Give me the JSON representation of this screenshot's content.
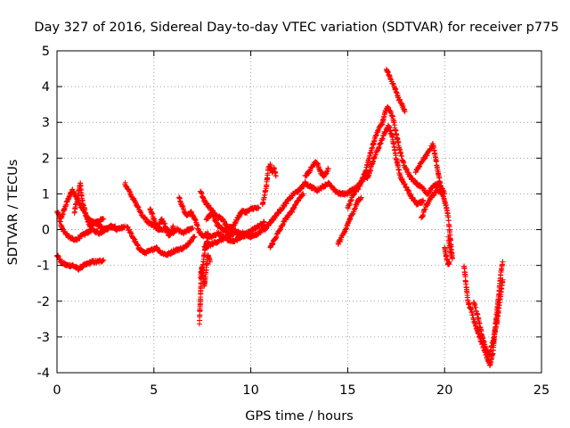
{
  "chart_data": {
    "type": "scatter",
    "title": "Day 327 of 2016, Sidereal Day-to-day VTEC variation (SDTVAR) for receiver p775",
    "xlabel": "GPS time / hours",
    "ylabel": "SDTVAR / TECUs",
    "xlim": [
      0,
      25
    ],
    "ylim": [
      -4,
      5
    ],
    "x_ticks": [
      "0",
      "5",
      "10",
      "15",
      "20",
      "25"
    ],
    "y_ticks": [
      "-4",
      "-3",
      "-2",
      "-1",
      "0",
      "1",
      "2",
      "3",
      "4",
      "5"
    ],
    "grid": true,
    "marker": "plus",
    "series": [
      {
        "name": "SDTVAR",
        "color": "#ff0000",
        "segments": [
          [
            [
              0.0,
              0.5
            ],
            [
              0.2,
              0.3
            ],
            [
              0.4,
              0.6
            ],
            [
              0.6,
              0.9
            ],
            [
              0.8,
              1.1
            ],
            [
              1.0,
              0.9
            ],
            [
              1.3,
              0.6
            ],
            [
              1.6,
              0.3
            ],
            [
              1.9,
              0.2
            ],
            [
              2.2,
              0.1
            ],
            [
              2.5,
              0.0
            ],
            [
              2.8,
              0.1
            ],
            [
              3.1,
              0.0
            ],
            [
              3.5,
              0.1
            ]
          ],
          [
            [
              0.0,
              -0.7
            ],
            [
              0.2,
              -0.9
            ],
            [
              0.5,
              -1.0
            ],
            [
              0.8,
              -1.0
            ],
            [
              1.1,
              -1.1
            ],
            [
              1.4,
              -1.0
            ],
            [
              1.8,
              -0.9
            ],
            [
              2.1,
              -0.9
            ],
            [
              2.4,
              -0.85
            ]
          ],
          [
            [
              0.1,
              0.3
            ],
            [
              0.3,
              0.0
            ],
            [
              0.6,
              -0.2
            ],
            [
              0.9,
              -0.3
            ],
            [
              1.2,
              -0.2
            ],
            [
              1.5,
              -0.1
            ],
            [
              1.8,
              0.0
            ],
            [
              2.2,
              -0.1
            ],
            [
              2.6,
              0.05
            ],
            [
              3.0,
              0.1
            ]
          ],
          [
            [
              0.9,
              0.5
            ],
            [
              1.1,
              1.0
            ],
            [
              1.2,
              1.3
            ],
            [
              1.3,
              0.8
            ],
            [
              1.5,
              0.4
            ],
            [
              1.7,
              0.1
            ],
            [
              2.0,
              0.2
            ],
            [
              2.4,
              0.3
            ]
          ],
          [
            [
              3.5,
              1.3
            ],
            [
              3.8,
              1.0
            ],
            [
              4.1,
              0.7
            ],
            [
              4.4,
              0.4
            ],
            [
              4.7,
              0.2
            ],
            [
              5.0,
              0.1
            ],
            [
              5.3,
              0.0
            ],
            [
              5.6,
              0.0
            ],
            [
              5.9,
              -0.1
            ],
            [
              6.2,
              0.0
            ],
            [
              6.5,
              -0.1
            ],
            [
              6.8,
              0.0
            ],
            [
              7.0,
              0.05
            ]
          ],
          [
            [
              3.6,
              0.1
            ],
            [
              3.9,
              -0.2
            ],
            [
              4.2,
              -0.5
            ],
            [
              4.5,
              -0.65
            ],
            [
              4.8,
              -0.6
            ],
            [
              5.1,
              -0.5
            ],
            [
              5.4,
              -0.65
            ],
            [
              5.7,
              -0.7
            ],
            [
              6.0,
              -0.6
            ],
            [
              6.3,
              -0.55
            ],
            [
              6.6,
              -0.5
            ],
            [
              6.9,
              -0.3
            ],
            [
              7.1,
              -0.2
            ]
          ],
          [
            [
              4.8,
              0.6
            ],
            [
              5.0,
              0.3
            ],
            [
              5.2,
              0.0
            ],
            [
              5.4,
              0.3
            ],
            [
              5.6,
              0.1
            ],
            [
              5.8,
              -0.2
            ],
            [
              6.0,
              0.1
            ]
          ],
          [
            [
              6.3,
              0.9
            ],
            [
              6.5,
              0.6
            ],
            [
              6.7,
              0.4
            ],
            [
              6.9,
              0.5
            ],
            [
              7.1,
              0.3
            ],
            [
              7.3,
              0.0
            ],
            [
              7.5,
              -0.2
            ],
            [
              7.8,
              -0.1
            ]
          ],
          [
            [
              7.35,
              -2.6
            ],
            [
              7.4,
              -1.9
            ],
            [
              7.45,
              -1.3
            ],
            [
              7.55,
              -0.9
            ],
            [
              7.65,
              -0.5
            ],
            [
              7.8,
              -0.2
            ],
            [
              8.0,
              -0.2
            ],
            [
              8.3,
              -0.1
            ],
            [
              8.6,
              -0.2
            ],
            [
              8.9,
              -0.3
            ],
            [
              9.2,
              -0.3
            ],
            [
              9.5,
              -0.2
            ],
            [
              9.8,
              -0.1
            ],
            [
              10.1,
              0.0
            ],
            [
              10.4,
              0.1
            ],
            [
              10.7,
              0.2
            ]
          ],
          [
            [
              7.4,
              -1.3
            ],
            [
              7.5,
              -1.0
            ],
            [
              7.6,
              -1.6
            ],
            [
              7.7,
              -1.1
            ],
            [
              7.8,
              -0.7
            ],
            [
              7.9,
              -0.9
            ]
          ],
          [
            [
              7.4,
              1.1
            ],
            [
              7.6,
              0.8
            ],
            [
              7.9,
              0.6
            ],
            [
              8.2,
              0.4
            ],
            [
              8.5,
              0.3
            ],
            [
              8.8,
              0.1
            ],
            [
              9.1,
              0.0
            ],
            [
              9.4,
              -0.1
            ],
            [
              9.7,
              -0.2
            ]
          ],
          [
            [
              7.7,
              0.3
            ],
            [
              8.0,
              0.45
            ],
            [
              8.3,
              0.1
            ],
            [
              8.6,
              0.0
            ],
            [
              8.9,
              -0.1
            ],
            [
              9.2,
              0.2
            ],
            [
              9.5,
              0.5
            ],
            [
              9.8,
              0.5
            ],
            [
              10.1,
              0.6
            ],
            [
              10.4,
              0.6
            ]
          ],
          [
            [
              7.6,
              -0.5
            ],
            [
              8.0,
              -0.4
            ],
            [
              8.4,
              -0.3
            ],
            [
              8.8,
              -0.2
            ],
            [
              9.2,
              -0.1
            ],
            [
              9.6,
              -0.1
            ],
            [
              10.0,
              -0.2
            ],
            [
              10.4,
              -0.1
            ],
            [
              10.8,
              0.1
            ]
          ],
          [
            [
              10.7,
              0.0
            ],
            [
              11.0,
              0.2
            ],
            [
              11.3,
              0.4
            ],
            [
              11.6,
              0.6
            ],
            [
              11.9,
              0.8
            ],
            [
              12.2,
              1.0
            ],
            [
              12.5,
              1.1
            ],
            [
              12.8,
              1.3
            ],
            [
              13.1,
              1.2
            ],
            [
              13.4,
              1.1
            ],
            [
              13.7,
              1.2
            ],
            [
              14.0,
              1.3
            ],
            [
              14.3,
              1.1
            ],
            [
              14.6,
              1.0
            ],
            [
              14.9,
              1.0
            ],
            [
              15.2,
              1.1
            ],
            [
              15.5,
              1.2
            ],
            [
              15.8,
              1.4
            ],
            [
              16.1,
              1.6
            ]
          ],
          [
            [
              10.6,
              0.7
            ],
            [
              10.8,
              1.2
            ],
            [
              10.9,
              1.7
            ],
            [
              11.0,
              1.8
            ],
            [
              11.1,
              1.6
            ],
            [
              11.2,
              1.7
            ],
            [
              11.3,
              1.5
            ]
          ],
          [
            [
              11.0,
              -0.5
            ],
            [
              11.2,
              -0.3
            ],
            [
              11.5,
              0.0
            ],
            [
              11.8,
              0.3
            ],
            [
              12.1,
              0.5
            ],
            [
              12.4,
              0.8
            ],
            [
              12.7,
              1.0
            ]
          ],
          [
            [
              12.8,
              1.5
            ],
            [
              13.0,
              1.6
            ],
            [
              13.2,
              1.8
            ],
            [
              13.4,
              1.9
            ],
            [
              13.6,
              1.6
            ],
            [
              13.8,
              1.5
            ],
            [
              14.0,
              1.7
            ]
          ],
          [
            [
              14.5,
              -0.4
            ],
            [
              14.7,
              -0.2
            ],
            [
              14.9,
              0.0
            ],
            [
              15.1,
              0.3
            ],
            [
              15.3,
              0.5
            ],
            [
              15.5,
              0.8
            ],
            [
              15.7,
              0.9
            ]
          ],
          [
            [
              15.0,
              0.6
            ],
            [
              15.3,
              1.0
            ],
            [
              15.6,
              1.2
            ],
            [
              15.9,
              1.6
            ],
            [
              16.2,
              2.2
            ],
            [
              16.5,
              2.7
            ],
            [
              16.8,
              3.0
            ],
            [
              17.0,
              3.4
            ],
            [
              17.1,
              3.4
            ],
            [
              17.3,
              3.2
            ],
            [
              17.5,
              2.7
            ],
            [
              17.7,
              2.2
            ],
            [
              17.9,
              1.8
            ],
            [
              18.2,
              1.5
            ],
            [
              18.5,
              1.3
            ],
            [
              18.8,
              1.2
            ],
            [
              19.1,
              1.0
            ],
            [
              19.4,
              1.2
            ],
            [
              19.7,
              1.3
            ],
            [
              20.0,
              1.0
            ]
          ],
          [
            [
              16.0,
              1.4
            ],
            [
              16.3,
              1.9
            ],
            [
              16.6,
              2.3
            ],
            [
              16.9,
              2.7
            ],
            [
              17.1,
              2.9
            ],
            [
              17.3,
              2.6
            ],
            [
              17.5,
              2.0
            ],
            [
              17.7,
              1.5
            ],
            [
              18.0,
              1.2
            ],
            [
              18.3,
              0.9
            ],
            [
              18.6,
              0.7
            ],
            [
              18.9,
              0.8
            ]
          ],
          [
            [
              17.0,
              4.5
            ],
            [
              17.2,
              4.2
            ],
            [
              17.4,
              4.0
            ],
            [
              17.6,
              3.7
            ],
            [
              17.8,
              3.5
            ],
            [
              17.95,
              3.3
            ]
          ],
          [
            [
              18.5,
              1.6
            ],
            [
              18.8,
              1.9
            ],
            [
              19.1,
              2.1
            ],
            [
              19.4,
              2.4
            ],
            [
              19.6,
              1.8
            ],
            [
              19.8,
              1.2
            ],
            [
              19.9,
              1.0
            ]
          ],
          [
            [
              18.8,
              0.3
            ],
            [
              19.0,
              0.6
            ],
            [
              19.3,
              0.9
            ],
            [
              19.6,
              1.1
            ],
            [
              19.9,
              1.0
            ],
            [
              20.1,
              0.6
            ],
            [
              20.2,
              0.3
            ],
            [
              20.3,
              -0.3
            ],
            [
              20.4,
              -0.8
            ],
            [
              20.3,
              -0.6
            ],
            [
              20.2,
              -0.2
            ]
          ],
          [
            [
              20.0,
              -0.5
            ],
            [
              20.1,
              -0.8
            ],
            [
              20.2,
              -1.0
            ],
            [
              20.25,
              -0.9
            ]
          ],
          [
            [
              21.0,
              -1.0
            ],
            [
              21.1,
              -1.5
            ],
            [
              21.2,
              -2.0
            ],
            [
              21.4,
              -2.3
            ],
            [
              21.6,
              -2.7
            ],
            [
              21.8,
              -3.0
            ],
            [
              22.0,
              -3.3
            ],
            [
              22.2,
              -3.6
            ],
            [
              22.35,
              -3.8
            ],
            [
              22.5,
              -3.4
            ],
            [
              22.6,
              -2.8
            ],
            [
              22.7,
              -2.3
            ],
            [
              22.8,
              -1.8
            ],
            [
              22.9,
              -1.2
            ],
            [
              23.0,
              -0.9
            ]
          ],
          [
            [
              21.5,
              -2.0
            ],
            [
              21.7,
              -2.4
            ],
            [
              21.9,
              -2.9
            ],
            [
              22.1,
              -3.3
            ],
            [
              22.3,
              -3.5
            ],
            [
              22.5,
              -3.1
            ],
            [
              22.7,
              -2.6
            ],
            [
              22.85,
              -2.0
            ],
            [
              23.0,
              -1.4
            ]
          ]
        ]
      }
    ]
  }
}
